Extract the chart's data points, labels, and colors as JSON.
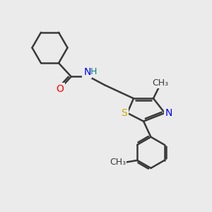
{
  "bg_color": "#ebebeb",
  "bond_color": "#3a3a3a",
  "atom_colors": {
    "O": "#ff0000",
    "N": "#0000ff",
    "S": "#ccaa00",
    "H": "#008080",
    "C": "#3a3a3a"
  },
  "bond_width": 1.8,
  "font_size": 10,
  "figsize": [
    3.0,
    3.0
  ],
  "dpi": 100
}
